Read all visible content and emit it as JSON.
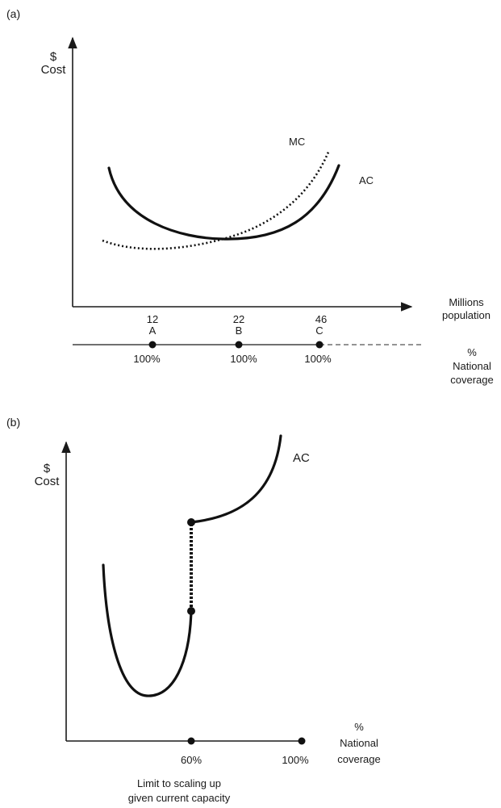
{
  "panel_a": {
    "label": "(a)",
    "y_label_line1": "$",
    "y_label_line2": "Cost",
    "mc_label": "MC",
    "ac_label": "AC",
    "x_label_line1": "Millions",
    "x_label_line2": "population",
    "ticks": [
      "12",
      "22",
      "46"
    ],
    "coverage": {
      "points": [
        "A",
        "B",
        "C"
      ],
      "pcts": [
        "100%",
        "100%",
        "100%"
      ],
      "label_line1": "%",
      "label_line2": "National",
      "label_line3": "coverage"
    }
  },
  "panel_b": {
    "label": "(b)",
    "y_label_line1": "$",
    "y_label_line2": "Cost",
    "ac_label": "AC",
    "ticks": [
      "60%",
      "100%"
    ],
    "x_label_line1": "%",
    "x_label_line2": "National",
    "x_label_line3": "coverage",
    "note_line1": "Limit to scaling up",
    "note_line2": "given current capacity"
  }
}
